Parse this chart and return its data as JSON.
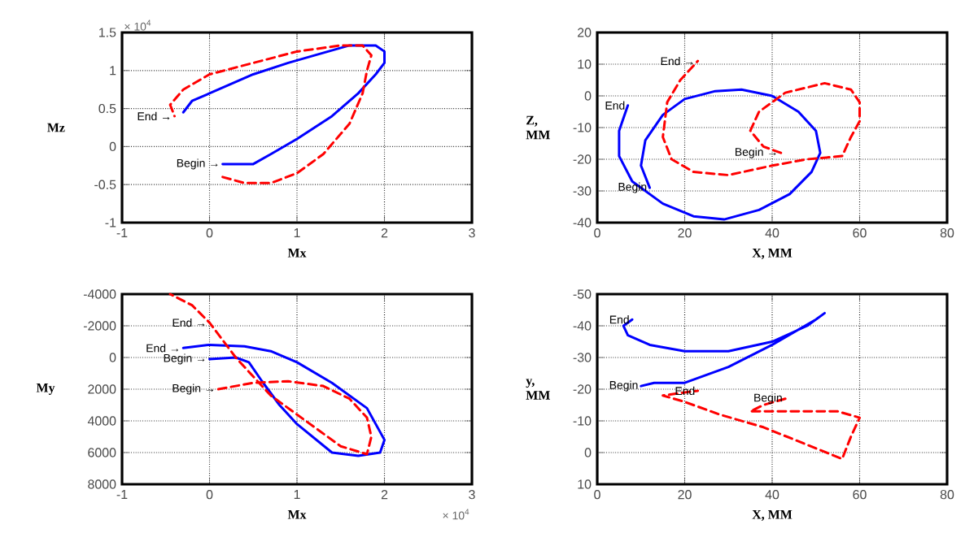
{
  "chart_data": [
    {
      "type": "line",
      "xlabel": "Mx",
      "ylabel": "Mz",
      "xlim": [
        -1,
        3
      ],
      "ylim": [
        -1,
        1.5
      ],
      "xticks": [
        -1,
        0,
        1,
        2,
        3
      ],
      "yticks": [
        -1,
        -0.5,
        0,
        0.5,
        1,
        1.5
      ],
      "grid": true,
      "series": [
        {
          "color": "#0000ff",
          "line_style": "solid",
          "x": [
            0.15,
            0.5,
            0.7,
            1.0,
            1.4,
            1.7,
            1.9,
            2.0,
            2.0,
            1.9,
            1.6,
            1.2,
            0.9,
            0.5,
            0.1,
            -0.2,
            -0.3
          ],
          "values": [
            -0.23,
            -0.23,
            -0.1,
            0.1,
            0.4,
            0.7,
            0.95,
            1.1,
            1.25,
            1.33,
            1.33,
            1.2,
            1.1,
            0.95,
            0.75,
            0.6,
            0.45
          ]
        },
        {
          "color": "#ff0000",
          "line_style": "dashed",
          "x": [
            0.15,
            0.4,
            0.7,
            1.0,
            1.3,
            1.6,
            1.75,
            1.8,
            1.85,
            1.75,
            1.5,
            1.0,
            0.5,
            0.0,
            -0.3,
            -0.45,
            -0.4
          ],
          "values": [
            -0.4,
            -0.48,
            -0.48,
            -0.35,
            -0.1,
            0.3,
            0.7,
            1.0,
            1.2,
            1.33,
            1.33,
            1.25,
            1.1,
            0.95,
            0.75,
            0.55,
            0.4
          ]
        }
      ],
      "annotations": [
        "× 10$^{4}$",
        {
          "text": "End →",
          "x": -0.4,
          "y": 0.4
        },
        {
          "text": "Begin →",
          "x": 0.15,
          "y": -0.23
        }
      ]
    },
    {
      "type": "line",
      "xlabel": "X, MM",
      "ylabel": "Z, MM",
      "xlim": [
        0,
        80
      ],
      "ylim": [
        -40,
        20
      ],
      "xticks": [
        0,
        20,
        40,
        60,
        80
      ],
      "yticks": [
        -40,
        -30,
        -20,
        -10,
        0,
        10,
        20
      ],
      "grid": true,
      "series": [
        {
          "color": "#0000ff",
          "line_style": "solid",
          "x": [
            12,
            10,
            11,
            15,
            20,
            27,
            33,
            40,
            46,
            50,
            51,
            49,
            44,
            37,
            29,
            22,
            15,
            8,
            5,
            5,
            7
          ],
          "values": [
            -29,
            -22,
            -14,
            -6,
            -1,
            1.5,
            2,
            0,
            -5,
            -11,
            -18,
            -24,
            -31,
            -36,
            -39,
            -38,
            -34,
            -27,
            -19,
            -11,
            -3
          ]
        },
        {
          "color": "#ff0000",
          "line_style": "dashed",
          "x": [
            42,
            38,
            35,
            37,
            43,
            52,
            58,
            60,
            60,
            58,
            56,
            48,
            40,
            30,
            22,
            17,
            15,
            16,
            19,
            23
          ],
          "values": [
            -18,
            -16,
            -11,
            -5,
            1,
            4,
            2,
            -2,
            -8,
            -13,
            -19,
            -20,
            -22,
            -25,
            -24,
            -20,
            -13,
            -2,
            5,
            11
          ]
        }
      ],
      "annotations": [
        {
          "text": "End →",
          "x": 23,
          "y": 11
        },
        {
          "text": "End",
          "x": 7,
          "y": -3
        },
        {
          "text": "Begin →",
          "x": 42,
          "y": -18
        },
        {
          "text": "Begin",
          "x": 12,
          "y": -29
        }
      ]
    },
    {
      "type": "line",
      "xlabel": "Mx",
      "ylabel": "My",
      "xlim": [
        -1,
        3
      ],
      "ylim": [
        8000,
        -4000
      ],
      "xticks": [
        -1,
        0,
        1,
        2,
        3
      ],
      "yticks": [
        -4000,
        -2000,
        0,
        2000,
        4000,
        6000,
        8000
      ],
      "grid": true,
      "series": [
        {
          "color": "#0000ff",
          "line_style": "solid",
          "x": [
            0.0,
            0.3,
            0.45,
            0.6,
            0.8,
            1.0,
            1.4,
            1.7,
            1.95,
            2.0,
            1.8,
            1.4,
            1.0,
            0.7,
            0.4,
            0.0,
            -0.3
          ],
          "values": [
            100,
            0,
            300,
            1500,
            3000,
            4200,
            6000,
            6200,
            6000,
            5200,
            3200,
            1600,
            300,
            -400,
            -700,
            -800,
            -600
          ]
        },
        {
          "color": "#ff0000",
          "line_style": "dashed",
          "x": [
            0.1,
            0.5,
            0.9,
            1.3,
            1.6,
            1.8,
            1.85,
            1.8,
            1.5,
            1.1,
            0.7,
            0.3,
            0.0,
            -0.2,
            -0.45
          ],
          "values": [
            2000,
            1600,
            1500,
            1800,
            2600,
            3800,
            5000,
            6100,
            5600,
            4000,
            2400,
            0,
            -2200,
            -3300,
            -4000
          ]
        }
      ],
      "annotations": [
        "× 10$^{4}$",
        {
          "text": "End →",
          "x": 0.0,
          "y": -2200
        },
        {
          "text": "End →",
          "x": -0.3,
          "y": -600
        },
        {
          "text": "Begin →",
          "x": 0.0,
          "y": 100
        },
        {
          "text": "Begin →",
          "x": 0.1,
          "y": 2000
        }
      ]
    },
    {
      "type": "line",
      "xlabel": "X, MM",
      "ylabel": "y, MM",
      "xlim": [
        0,
        80
      ],
      "ylim": [
        10,
        -50
      ],
      "xticks": [
        0,
        20,
        40,
        60,
        80
      ],
      "yticks": [
        -50,
        -40,
        -30,
        -20,
        -10,
        0,
        10
      ],
      "grid": true,
      "series": [
        {
          "color": "#0000ff",
          "line_style": "solid",
          "x": [
            10,
            13,
            20,
            30,
            40,
            50,
            52,
            48,
            40,
            30,
            20,
            12,
            7,
            6,
            8
          ],
          "values": [
            -21,
            -22,
            -22,
            -27,
            -34,
            -42,
            -44,
            -40,
            -35,
            -32,
            -32,
            -34,
            -37,
            -40,
            -42
          ]
        },
        {
          "color": "#ff0000",
          "line_style": "dashed",
          "x": [
            43,
            38,
            35,
            45,
            55,
            60,
            58,
            56,
            47,
            38,
            28,
            20,
            15,
            20,
            23
          ],
          "values": [
            -17,
            -15,
            -13,
            -13,
            -13,
            -11,
            -5,
            2,
            -3,
            -8,
            -12,
            -16,
            -18,
            -19,
            -19.5
          ]
        }
      ],
      "annotations": [
        {
          "text": "End",
          "x": 8,
          "y": -42
        },
        {
          "text": "Begin",
          "x": 10,
          "y": -21
        },
        {
          "text": "End",
          "x": 23,
          "y": -19.5
        },
        {
          "text": "Begin",
          "x": 43,
          "y": -17
        }
      ]
    }
  ]
}
